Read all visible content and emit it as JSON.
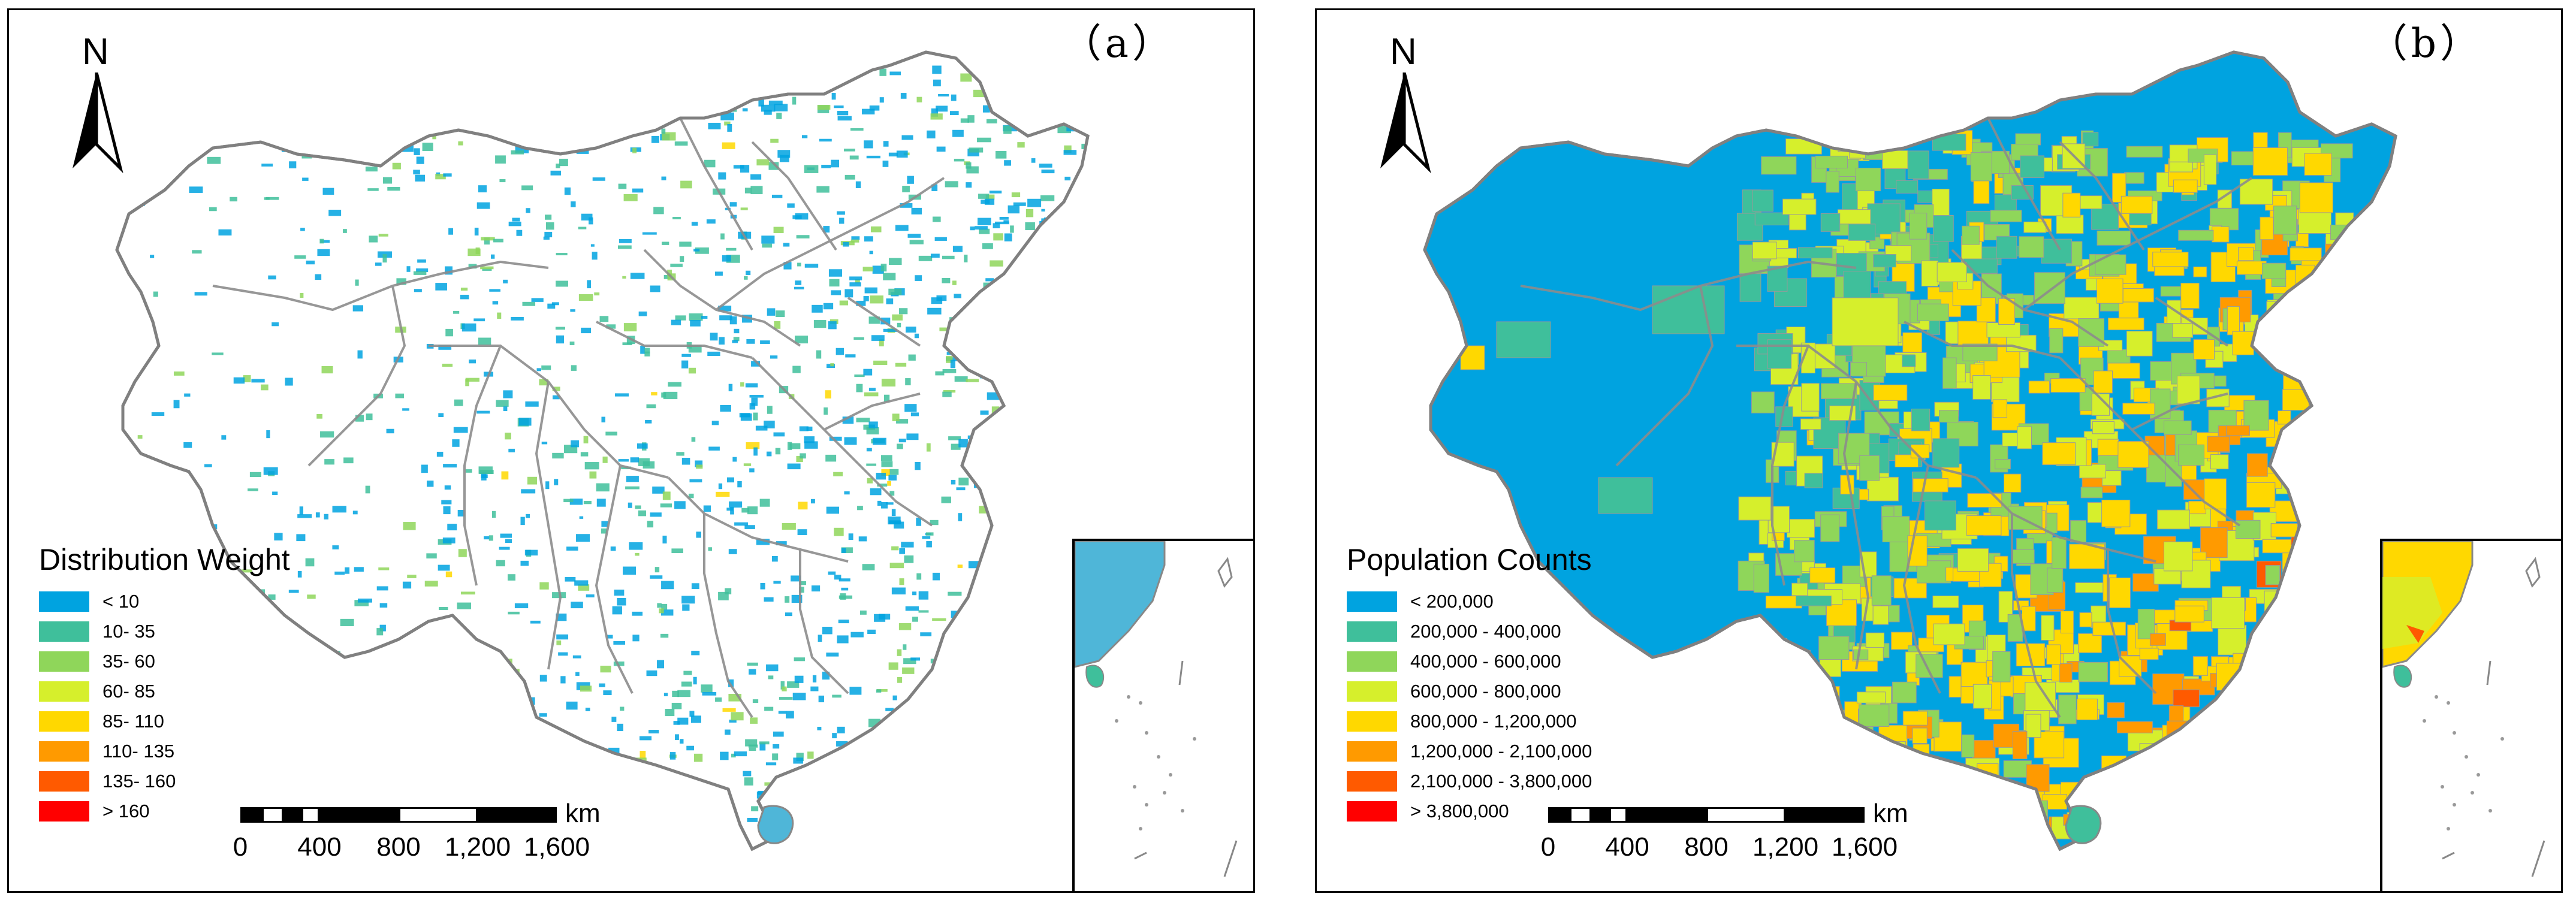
{
  "panels": [
    {
      "label": "（a）",
      "north": "N",
      "legend": {
        "title": "Distribution Weight",
        "items": [
          {
            "label": "< 10",
            "color": "#00a3e0"
          },
          {
            "label": "10- 35",
            "color": "#3fbf9b"
          },
          {
            "label": "35- 60",
            "color": "#8fd65a"
          },
          {
            "label": "60- 85",
            "color": "#d6ef2c"
          },
          {
            "label": "85- 110",
            "color": "#ffd800"
          },
          {
            "label": "110- 135",
            "color": "#ff9a00"
          },
          {
            "label": "135- 160",
            "color": "#ff5a00"
          },
          {
            "label": "> 160",
            "color": "#ff0000"
          }
        ]
      },
      "scale": {
        "unit": "km",
        "ticks": [
          "0",
          "400",
          "800",
          "1,200",
          "1,600"
        ]
      }
    },
    {
      "label": "（b）",
      "north": "N",
      "legend": {
        "title": "Population Counts",
        "items": [
          {
            "label": "< 200,000",
            "color": "#00a3e0"
          },
          {
            "label": "200,000 - 400,000",
            "color": "#3fbf9b"
          },
          {
            "label": "400,000 - 600,000",
            "color": "#8fd65a"
          },
          {
            "label": "600,000 - 800,000",
            "color": "#d6ef2c"
          },
          {
            "label": "800,000 - 1,200,000",
            "color": "#ffd800"
          },
          {
            "label": "1,200,000 - 2,100,000",
            "color": "#ff9a00"
          },
          {
            "label": "2,100,000 - 3,800,000",
            "color": "#ff5a00"
          },
          {
            "label": "> 3,800,000",
            "color": "#ff0000"
          }
        ]
      },
      "scale": {
        "unit": "km",
        "ticks": [
          "0",
          "400",
          "800",
          "1,200",
          "1,600"
        ]
      }
    }
  ]
}
